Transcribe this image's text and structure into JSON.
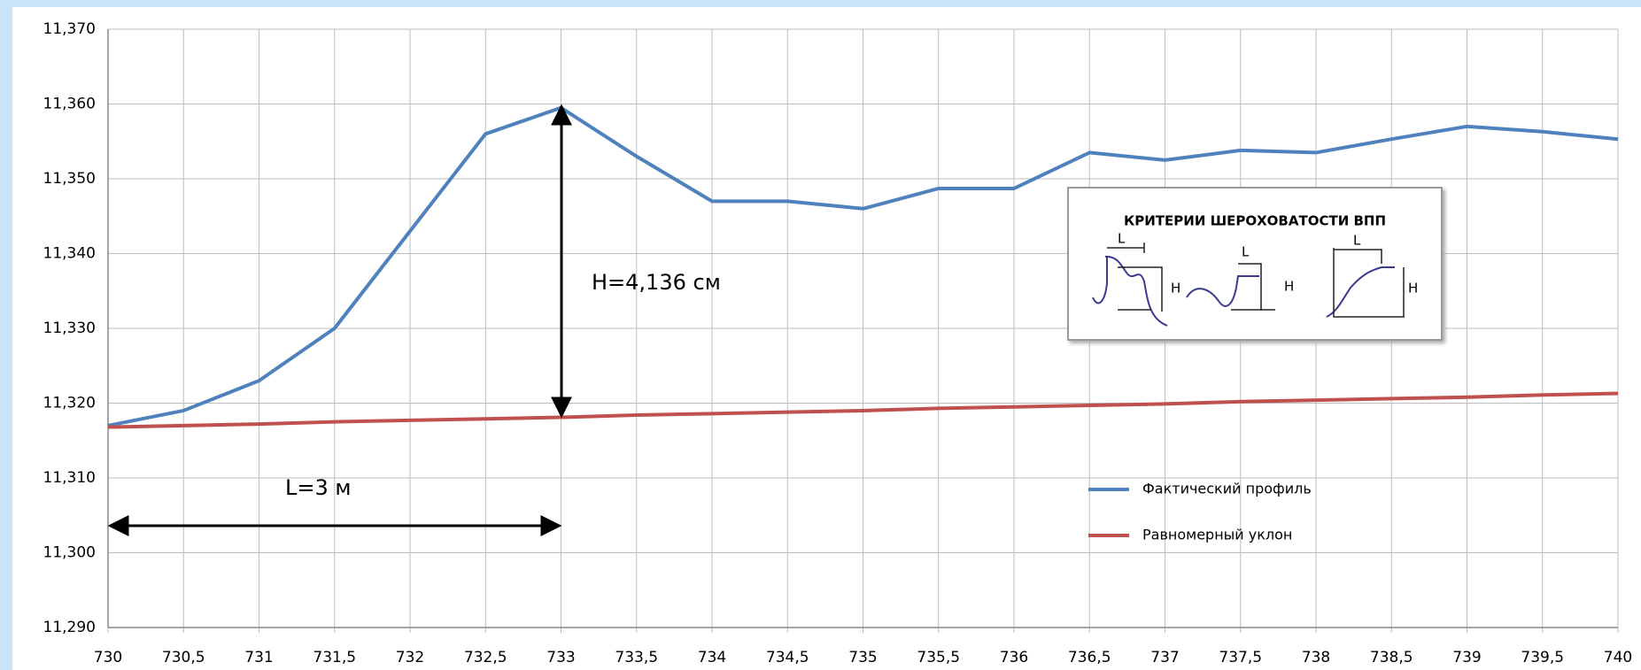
{
  "chart_data": {
    "type": "line",
    "x": [
      730,
      730.5,
      731,
      731.5,
      732,
      732.5,
      733,
      733.5,
      734,
      734.5,
      735,
      735.5,
      736,
      736.5,
      737,
      737.5,
      738,
      738.5,
      739,
      739.5,
      740
    ],
    "series": [
      {
        "name": "Фактический профиль",
        "color": "#4f81bd",
        "values": [
          11.317,
          11.319,
          11.323,
          11.33,
          11.343,
          11.356,
          11.3595,
          11.353,
          11.347,
          11.347,
          11.346,
          11.3487,
          11.3487,
          11.3535,
          11.3525,
          11.3538,
          11.3535,
          11.3553,
          11.357,
          11.3563,
          11.3553
        ]
      },
      {
        "name": "Равномерный уклон",
        "color": "#c0504d",
        "values": [
          11.3168,
          11.317,
          11.3172,
          11.3175,
          11.3177,
          11.3179,
          11.3181,
          11.3184,
          11.3186,
          11.3188,
          11.319,
          11.3193,
          11.3195,
          11.3197,
          11.3199,
          11.3202,
          11.3204,
          11.3206,
          11.3208,
          11.3211,
          11.3213
        ]
      }
    ],
    "xlim": [
      730,
      740
    ],
    "xticks": [
      730,
      {
        "value": 730.5,
        "label": "730,5"
      },
      731,
      {
        "value": 731.5,
        "label": "731,5"
      },
      732,
      {
        "value": 732.5,
        "label": "732,5"
      },
      733,
      {
        "value": 733.5,
        "label": "733,5"
      },
      734,
      {
        "value": 734.5,
        "label": "734,5"
      },
      735,
      {
        "value": 735.5,
        "label": "735,5"
      },
      736,
      {
        "value": 736.5,
        "label": "736,5"
      },
      737,
      {
        "value": 737.5,
        "label": "737,5"
      },
      738,
      {
        "value": 738.5,
        "label": "738,5"
      },
      739,
      {
        "value": 739.5,
        "label": "739,5"
      },
      740
    ],
    "ylim": [
      11.29,
      11.37
    ],
    "yticks": [
      {
        "value": 11.29,
        "label": "11,290"
      },
      {
        "value": 11.3,
        "label": "11,300"
      },
      {
        "value": 11.31,
        "label": "11,310"
      },
      {
        "value": 11.32,
        "label": "11,320"
      },
      {
        "value": 11.33,
        "label": "11,330"
      },
      {
        "value": 11.34,
        "label": "11,340"
      },
      {
        "value": 11.35,
        "label": "11,350"
      },
      {
        "value": 11.36,
        "label": "11,360"
      },
      {
        "value": 11.37,
        "label": "11,370"
      }
    ],
    "grid": true,
    "legend": "lower-right",
    "annotations": {
      "height": "H=4,136 см",
      "length": "L=3 м"
    },
    "inset": {
      "title": "КРИТЕРИИ ШЕРОХОВАТОСТИ ВПП",
      "labels": [
        "L",
        "H",
        "L",
        "H",
        "L",
        "H"
      ]
    }
  }
}
